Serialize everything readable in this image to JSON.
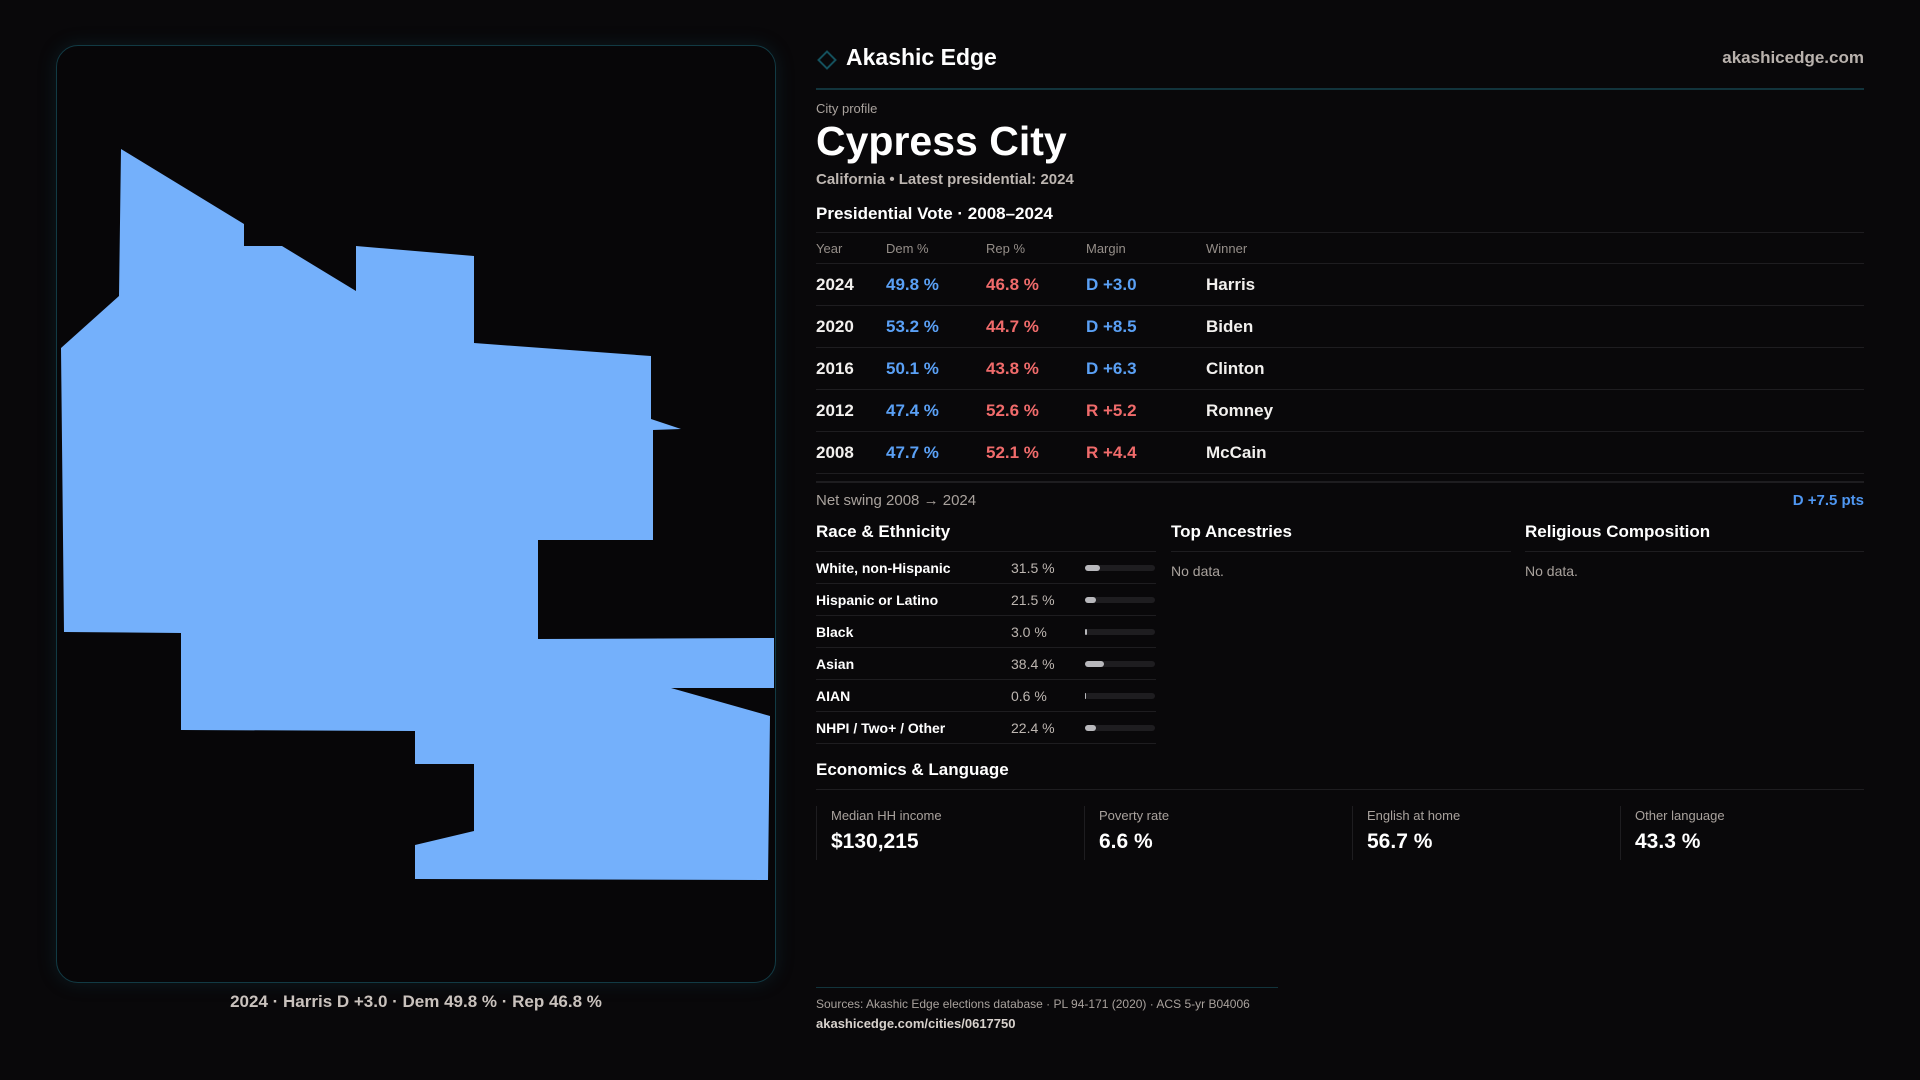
{
  "brand": {
    "name": "Akashic Edge",
    "site": "akashicedge.com"
  },
  "profile": {
    "eyebrow": "City profile",
    "title": "Cypress City",
    "subtitle": "California • Latest presidential: 2024"
  },
  "map": {
    "fill": "#74b0fb",
    "caption": "2024 · Harris D +3.0 · Dem 49.8 % · Rep 46.8 %"
  },
  "vote": {
    "title": "Presidential Vote · 2008–2024",
    "headers": [
      "Year",
      "Dem %",
      "Rep %",
      "Margin",
      "Winner"
    ],
    "rows": [
      {
        "year": "2024",
        "dem": "49.8 %",
        "rep": "46.8 %",
        "margin": "D +3.0",
        "party": "D",
        "winner": "Harris"
      },
      {
        "year": "2020",
        "dem": "53.2 %",
        "rep": "44.7 %",
        "margin": "D +8.5",
        "party": "D",
        "winner": "Biden"
      },
      {
        "year": "2016",
        "dem": "50.1 %",
        "rep": "43.8 %",
        "margin": "D +6.3",
        "party": "D",
        "winner": "Clinton"
      },
      {
        "year": "2012",
        "dem": "47.4 %",
        "rep": "52.6 %",
        "margin": "R +5.2",
        "party": "R",
        "winner": "Romney"
      },
      {
        "year": "2008",
        "dem": "47.7 %",
        "rep": "52.1 %",
        "margin": "R +4.4",
        "party": "R",
        "winner": "McCain"
      }
    ],
    "swing_label": "Net swing 2008 → 2024",
    "swing_value": "D +7.5 pts"
  },
  "race": {
    "title": "Race & Ethnicity",
    "items": [
      {
        "label": "White, non-Hispanic",
        "value": "31.5 %",
        "pct": 31.5
      },
      {
        "label": "Hispanic or Latino",
        "value": "21.5 %",
        "pct": 21.5
      },
      {
        "label": "Black",
        "value": "3.0 %",
        "pct": 3.0
      },
      {
        "label": "Asian",
        "value": "38.4 %",
        "pct": 38.4
      },
      {
        "label": "AIAN",
        "value": "0.6 %",
        "pct": 0.6
      },
      {
        "label": "NHPI / Two+ / Other",
        "value": "22.4 %",
        "pct": 22.4
      }
    ]
  },
  "ancestries": {
    "title": "Top Ancestries",
    "empty": "No data."
  },
  "religion": {
    "title": "Religious Composition",
    "empty": "No data."
  },
  "econ": {
    "title": "Economics & Language",
    "stats": [
      {
        "label": "Median HH income",
        "value": "$130,215"
      },
      {
        "label": "Poverty rate",
        "value": "6.6 %"
      },
      {
        "label": "English at home",
        "value": "56.7 %"
      },
      {
        "label": "Other language",
        "value": "43.3 %"
      }
    ]
  },
  "footer": {
    "sources": "Sources: Akashic Edge elections database · PL 94-171 (2020) · ACS 5-yr B04006",
    "url": "akashicedge.com/cities/0617750"
  },
  "colors": {
    "dem": "#5aa0f5",
    "rep": "#f06b6b",
    "accent": "#12343c"
  }
}
